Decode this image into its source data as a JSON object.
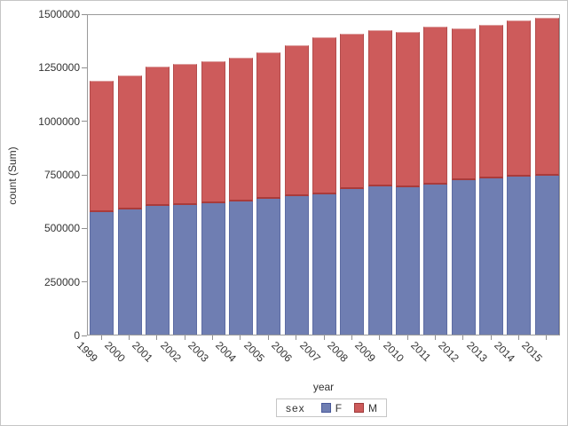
{
  "chart_data": {
    "type": "bar",
    "stacked": true,
    "title": "",
    "xlabel": "year",
    "ylabel": "count (Sum)",
    "ylim": [
      0,
      1500000
    ],
    "y_ticks": [
      0,
      250000,
      500000,
      750000,
      1000000,
      1250000,
      1500000
    ],
    "y_tick_labels": [
      "0",
      "250000",
      "500000",
      "750000",
      "1000000",
      "1250000",
      "1500000"
    ],
    "grid": false,
    "legend_position": "bottom",
    "categories": [
      "1999",
      "2000",
      "2001",
      "2002",
      "2003",
      "2004",
      "2005",
      "2006",
      "2007",
      "2008",
      "2009",
      "2010",
      "2011",
      "2012",
      "2013",
      "2014",
      "2015"
    ],
    "series": [
      {
        "name": "F",
        "color": "#6F7EB2",
        "border_color": "#5D6CA3",
        "values": [
          573000,
          584000,
          602000,
          606000,
          612000,
          620000,
          632000,
          646000,
          656000,
          678000,
          692000,
          688000,
          702000,
          720000,
          729000,
          736000,
          743000
        ]
      },
      {
        "name": "M",
        "color": "#CD5B5B",
        "border_color": "#B34C4C",
        "values": [
          612000,
          628000,
          648000,
          657000,
          665000,
          671000,
          687000,
          703000,
          732000,
          728000,
          731000,
          726000,
          735000,
          710000,
          719000,
          732000,
          735000
        ]
      }
    ],
    "totals": [
      1185000,
      1212000,
      1250000,
      1263000,
      1277000,
      1291000,
      1319000,
      1349000,
      1388000,
      1406000,
      1423000,
      1414000,
      1437000,
      1430000,
      1448000,
      1468000,
      1478000
    ]
  },
  "legend": {
    "title": "sex",
    "entries": [
      {
        "label": "F",
        "color": "#6F7EB2",
        "border": "#49599A"
      },
      {
        "label": "M",
        "color": "#CD5B5B",
        "border": "#9E3A3A"
      }
    ]
  },
  "style": {
    "background": "#FFFFFF",
    "outer_border": "#C6C6C6",
    "frame_color": "#9A9A9A",
    "tick_color": "#8F8F8F",
    "text_color": "#333333",
    "segment_divider": "#A93B3B",
    "red_top_highlight": "#DDA0A0"
  }
}
